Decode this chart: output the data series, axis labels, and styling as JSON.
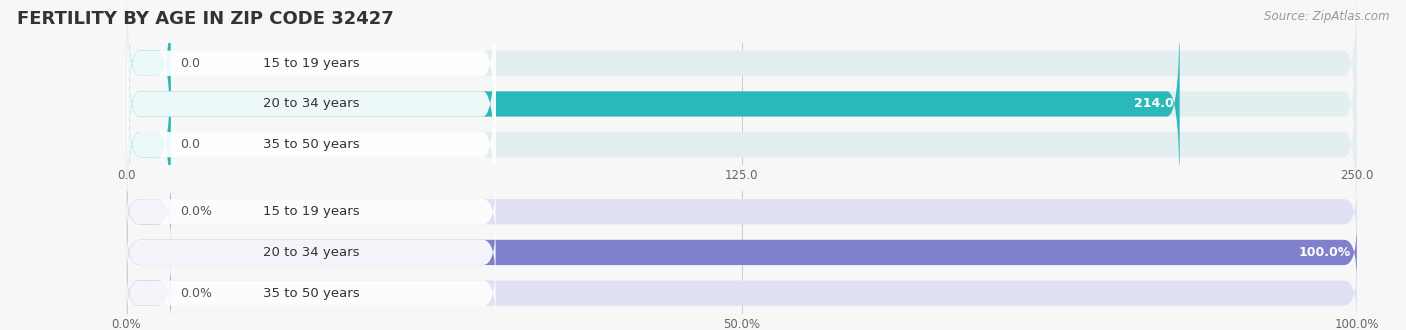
{
  "title": "FERTILITY BY AGE IN ZIP CODE 32427",
  "source": "Source: ZipAtlas.com",
  "top_chart": {
    "categories": [
      "15 to 19 years",
      "20 to 34 years",
      "35 to 50 years"
    ],
    "values": [
      0.0,
      214.0,
      0.0
    ],
    "xlim": [
      0,
      250
    ],
    "xticks": [
      0.0,
      125.0,
      250.0
    ],
    "xtick_labels": [
      "0.0",
      "125.0",
      "250.0"
    ],
    "bar_color": "#2ab8b8",
    "bar_bg_color": "#e2eef0",
    "label_bg_color": "#ffffff",
    "value_color_inside": "#ffffff",
    "value_color_outside": "#555555"
  },
  "bottom_chart": {
    "categories": [
      "15 to 19 years",
      "20 to 34 years",
      "35 to 50 years"
    ],
    "values": [
      0.0,
      100.0,
      0.0
    ],
    "xlim": [
      0,
      100
    ],
    "xticks": [
      0.0,
      50.0,
      100.0
    ],
    "xtick_labels": [
      "0.0%",
      "50.0%",
      "100.0%"
    ],
    "bar_color": "#8080cc",
    "bar_bg_color": "#e0e0f4",
    "label_bg_color": "#ffffff",
    "value_color_inside": "#ffffff",
    "value_color_outside": "#555555"
  },
  "fig_bg": "#f7f7f7",
  "bar_height": 0.62,
  "label_fontsize": 9.5,
  "value_fontsize": 9,
  "title_fontsize": 13,
  "source_fontsize": 8.5
}
